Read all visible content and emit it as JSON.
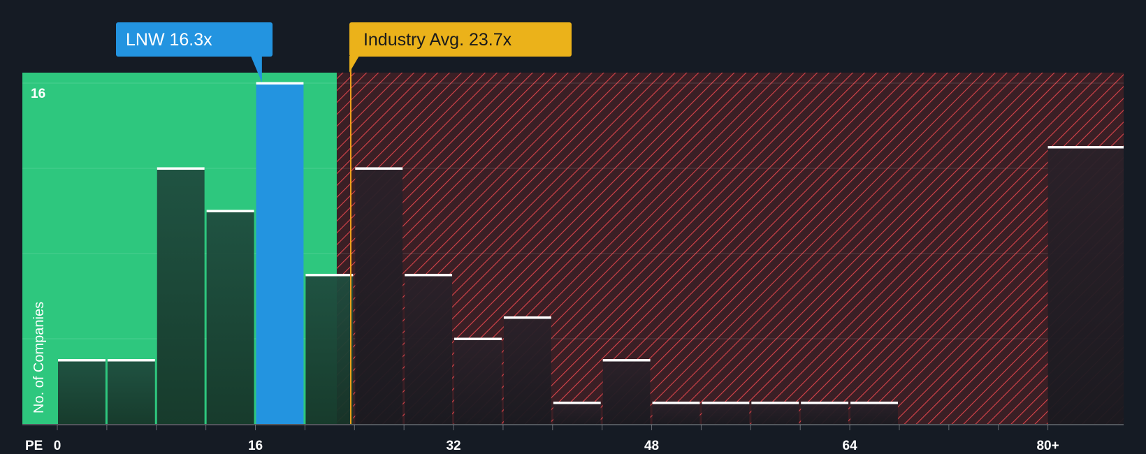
{
  "chart_data": {
    "type": "bar",
    "title": "",
    "xlabel": "PE",
    "ylabel": "No. of Companies",
    "xlim": [
      0,
      82
    ],
    "ylim": [
      0,
      16.5
    ],
    "bin_width": 4,
    "x_tick_labels": [
      "0",
      "16",
      "32",
      "48",
      "64",
      "80+"
    ],
    "x_tick_values": [
      0,
      16,
      32,
      48,
      64,
      80
    ],
    "y_tick_labels": [
      "16"
    ],
    "y_tick_values": [
      16
    ],
    "bins": [
      {
        "x0": 0,
        "value": 3
      },
      {
        "x0": 4,
        "value": 3
      },
      {
        "x0": 8,
        "value": 12
      },
      {
        "x0": 12,
        "value": 10
      },
      {
        "x0": 16,
        "value": 16
      },
      {
        "x0": 20,
        "value": 7
      },
      {
        "x0": 24,
        "value": 12
      },
      {
        "x0": 28,
        "value": 7
      },
      {
        "x0": 32,
        "value": 4
      },
      {
        "x0": 36,
        "value": 5
      },
      {
        "x0": 40,
        "value": 1
      },
      {
        "x0": 44,
        "value": 3
      },
      {
        "x0": 48,
        "value": 1
      },
      {
        "x0": 52,
        "value": 1
      },
      {
        "x0": 56,
        "value": 1
      },
      {
        "x0": 60,
        "value": 1
      },
      {
        "x0": 64,
        "value": 1
      },
      {
        "x0": 68,
        "value": 0
      },
      {
        "x0": 72,
        "value": 0
      },
      {
        "x0": 76,
        "value": 0
      },
      {
        "x0": 80,
        "value": 13,
        "label": "80+"
      }
    ],
    "highlight": {
      "label": "LNW 16.3x",
      "value": 16.3
    },
    "industry_avg": {
      "label": "Industry Avg. 23.7x",
      "value": 23.7
    },
    "colors": {
      "background": "#151b24",
      "good_zone": "#2ec77e",
      "bad_zone": "#3a1f25",
      "hatch": "#d9434a",
      "bar_good": "#1f4d3f",
      "bar_bad": "#2a2129",
      "highlight_bar": "#2394e0",
      "highlight_callout": "#2394e0",
      "avg_callout": "#ebb21a",
      "avg_line": "#f0a21b",
      "cap": "#ffffff",
      "text": "#ffffff"
    }
  }
}
